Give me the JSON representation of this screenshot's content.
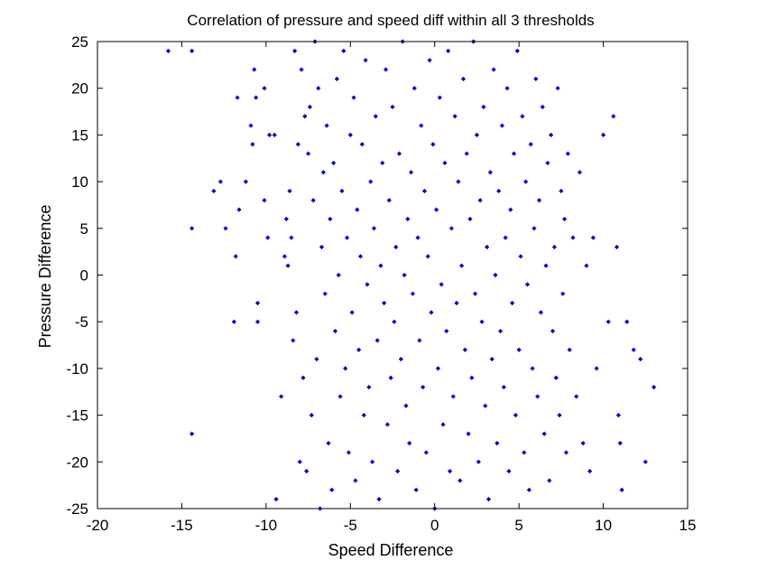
{
  "chart_data": {
    "type": "scatter",
    "title": "Correlation of pressure and speed diff within all 3 thresholds",
    "xlabel": "Speed Difference",
    "ylabel": "Pressure Difference",
    "xlim": [
      -20,
      15
    ],
    "ylim": [
      -25,
      25
    ],
    "xticks": [
      -20,
      -15,
      -10,
      -5,
      0,
      5,
      10,
      15
    ],
    "yticks": [
      -25,
      -20,
      -15,
      -10,
      -5,
      0,
      5,
      10,
      15,
      20,
      25
    ],
    "grid": false,
    "legend": "none",
    "marker_color": "#0000cc",
    "marker": "diamond",
    "series": [
      {
        "values": [
          [
            -15.8,
            24
          ],
          [
            -14.4,
            24
          ],
          [
            -14.4,
            5
          ],
          [
            -14.4,
            -17
          ],
          [
            -13.1,
            9
          ],
          [
            -12.7,
            10
          ],
          [
            -12.4,
            5
          ],
          [
            -11.9,
            -5
          ],
          [
            -11.8,
            2
          ],
          [
            -11.7,
            19
          ],
          [
            -11.6,
            7
          ],
          [
            -11.2,
            10
          ],
          [
            -10.9,
            16
          ],
          [
            -10.8,
            14
          ],
          [
            -10.7,
            22
          ],
          [
            -10.6,
            19
          ],
          [
            -10.5,
            -3
          ],
          [
            -10.5,
            -5
          ],
          [
            -10.1,
            20
          ],
          [
            -10.1,
            8
          ],
          [
            -9.9,
            4
          ],
          [
            -9.8,
            15
          ],
          [
            -9.5,
            15
          ],
          [
            -9.4,
            -24
          ],
          [
            -9.1,
            -13
          ],
          [
            -8.9,
            2
          ],
          [
            -8.8,
            6
          ],
          [
            -8.7,
            1
          ],
          [
            -8.6,
            9
          ],
          [
            -8.5,
            4
          ],
          [
            -8.4,
            -7
          ],
          [
            -8.3,
            24
          ],
          [
            -8.2,
            -4
          ],
          [
            -8.1,
            14
          ],
          [
            -8.0,
            -20
          ],
          [
            -7.9,
            22
          ],
          [
            -7.8,
            -11
          ],
          [
            -7.7,
            17
          ],
          [
            -7.6,
            -21
          ],
          [
            -7.5,
            13
          ],
          [
            -7.4,
            18
          ],
          [
            -7.3,
            -15
          ],
          [
            -7.2,
            8
          ],
          [
            -7.1,
            25
          ],
          [
            -7.0,
            -9
          ],
          [
            -6.9,
            20
          ],
          [
            -6.8,
            -25
          ],
          [
            -6.7,
            3
          ],
          [
            -6.6,
            11
          ],
          [
            -6.5,
            -2
          ],
          [
            -6.4,
            16
          ],
          [
            -6.3,
            -18
          ],
          [
            -6.2,
            6
          ],
          [
            -6.1,
            -23
          ],
          [
            -6.0,
            12
          ],
          [
            -5.9,
            -6
          ],
          [
            -5.8,
            21
          ],
          [
            -5.7,
            0
          ],
          [
            -5.6,
            -13
          ],
          [
            -5.5,
            9
          ],
          [
            -5.4,
            24
          ],
          [
            -5.3,
            -10
          ],
          [
            -5.2,
            4
          ],
          [
            -5.1,
            -19
          ],
          [
            -5.0,
            15
          ],
          [
            -4.9,
            -4
          ],
          [
            -4.8,
            19
          ],
          [
            -4.7,
            -22
          ],
          [
            -4.6,
            7
          ],
          [
            -4.5,
            -8
          ],
          [
            -4.4,
            2
          ],
          [
            -4.3,
            14
          ],
          [
            -4.2,
            -15
          ],
          [
            -4.1,
            23
          ],
          [
            -4.0,
            -1
          ],
          [
            -3.9,
            -12
          ],
          [
            -3.8,
            10
          ],
          [
            -3.7,
            -20
          ],
          [
            -3.6,
            5
          ],
          [
            -3.5,
            17
          ],
          [
            -3.4,
            -7
          ],
          [
            -3.3,
            -24
          ],
          [
            -3.2,
            1
          ],
          [
            -3.1,
            12
          ],
          [
            -3.0,
            -3
          ],
          [
            -2.9,
            22
          ],
          [
            -2.8,
            -16
          ],
          [
            -2.7,
            8
          ],
          [
            -2.6,
            -11
          ],
          [
            -2.5,
            18
          ],
          [
            -2.4,
            -5
          ],
          [
            -2.3,
            3
          ],
          [
            -2.2,
            -21
          ],
          [
            -2.1,
            13
          ],
          [
            -2.0,
            -9
          ],
          [
            -1.9,
            25
          ],
          [
            -1.8,
            0
          ],
          [
            -1.7,
            -14
          ],
          [
            -1.6,
            6
          ],
          [
            -1.5,
            -18
          ],
          [
            -1.4,
            11
          ],
          [
            -1.3,
            -2
          ],
          [
            -1.2,
            20
          ],
          [
            -1.1,
            -23
          ],
          [
            -1.0,
            4
          ],
          [
            -0.9,
            -7
          ],
          [
            -0.8,
            16
          ],
          [
            -0.7,
            -12
          ],
          [
            -0.6,
            9
          ],
          [
            -0.5,
            -19
          ],
          [
            -0.4,
            2
          ],
          [
            -0.3,
            23
          ],
          [
            -0.2,
            -4
          ],
          [
            -0.1,
            14
          ],
          [
            0.0,
            -25
          ],
          [
            0.1,
            7
          ],
          [
            0.2,
            -10
          ],
          [
            0.3,
            19
          ],
          [
            0.4,
            -1
          ],
          [
            0.5,
            -16
          ],
          [
            0.6,
            12
          ],
          [
            0.7,
            -6
          ],
          [
            0.8,
            24
          ],
          [
            0.9,
            -21
          ],
          [
            1.0,
            5
          ],
          [
            1.1,
            -13
          ],
          [
            1.2,
            17
          ],
          [
            1.3,
            -3
          ],
          [
            1.4,
            10
          ],
          [
            1.5,
            -22
          ],
          [
            1.6,
            1
          ],
          [
            1.7,
            21
          ],
          [
            1.8,
            -8
          ],
          [
            1.9,
            13
          ],
          [
            2.0,
            -17
          ],
          [
            2.1,
            6
          ],
          [
            2.2,
            -11
          ],
          [
            2.3,
            25
          ],
          [
            2.4,
            -2
          ],
          [
            2.5,
            15
          ],
          [
            2.6,
            -20
          ],
          [
            2.7,
            8
          ],
          [
            2.8,
            -5
          ],
          [
            2.9,
            18
          ],
          [
            3.0,
            -14
          ],
          [
            3.1,
            3
          ],
          [
            3.2,
            -24
          ],
          [
            3.3,
            11
          ],
          [
            3.4,
            -9
          ],
          [
            3.5,
            22
          ],
          [
            3.6,
            0
          ],
          [
            3.7,
            -18
          ],
          [
            3.8,
            9
          ],
          [
            3.9,
            -6
          ],
          [
            4.0,
            16
          ],
          [
            4.1,
            -12
          ],
          [
            4.2,
            4
          ],
          [
            4.3,
            20
          ],
          [
            4.4,
            -21
          ],
          [
            4.5,
            7
          ],
          [
            4.6,
            -3
          ],
          [
            4.7,
            13
          ],
          [
            4.8,
            -15
          ],
          [
            4.9,
            24
          ],
          [
            5.0,
            -8
          ],
          [
            5.1,
            2
          ],
          [
            5.2,
            17
          ],
          [
            5.3,
            -19
          ],
          [
            5.4,
            10
          ],
          [
            5.5,
            -1
          ],
          [
            5.6,
            -23
          ],
          [
            5.7,
            14
          ],
          [
            5.8,
            -10
          ],
          [
            5.9,
            5
          ],
          [
            6.0,
            21
          ],
          [
            6.1,
            -13
          ],
          [
            6.2,
            8
          ],
          [
            6.3,
            -4
          ],
          [
            6.4,
            18
          ],
          [
            6.5,
            -17
          ],
          [
            6.6,
            1
          ],
          [
            6.7,
            12
          ],
          [
            6.8,
            -22
          ],
          [
            6.9,
            15
          ],
          [
            7.0,
            -6
          ],
          [
            7.1,
            3
          ],
          [
            7.2,
            -11
          ],
          [
            7.3,
            20
          ],
          [
            7.4,
            -15
          ],
          [
            7.5,
            9
          ],
          [
            7.6,
            -2
          ],
          [
            7.7,
            6
          ],
          [
            7.8,
            -19
          ],
          [
            7.9,
            13
          ],
          [
            8.0,
            -8
          ],
          [
            8.2,
            4
          ],
          [
            8.4,
            -13
          ],
          [
            8.6,
            11
          ],
          [
            8.8,
            -18
          ],
          [
            9.0,
            1
          ],
          [
            9.2,
            -21
          ],
          [
            9.4,
            4
          ],
          [
            9.6,
            -10
          ],
          [
            10.0,
            15
          ],
          [
            10.3,
            -5
          ],
          [
            10.6,
            17
          ],
          [
            10.8,
            3
          ],
          [
            10.9,
            -15
          ],
          [
            11.0,
            -18
          ],
          [
            11.1,
            -23
          ],
          [
            11.4,
            -5
          ],
          [
            11.8,
            -8
          ],
          [
            12.2,
            -9
          ],
          [
            12.5,
            -20
          ],
          [
            13.0,
            -12
          ]
        ]
      }
    ]
  }
}
